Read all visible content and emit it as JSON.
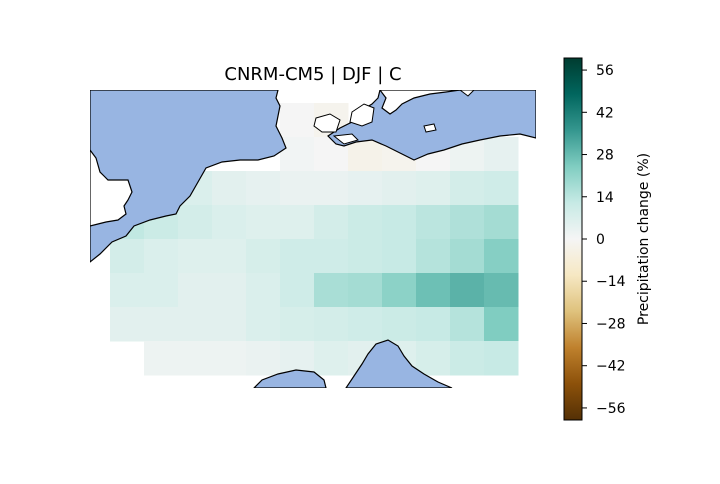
{
  "title": "CNRM-CM5 | DJF | C",
  "colorbar": {
    "label": "Precipitation change (%)",
    "ticks": [
      "56",
      "42",
      "28",
      "14",
      "0",
      "−14",
      "−28",
      "−42",
      "−56"
    ],
    "tick_values": [
      56,
      42,
      28,
      14,
      0,
      -14,
      -28,
      -42,
      -56
    ],
    "range": [
      -60,
      60
    ],
    "colormap": "BrBG",
    "colors": [
      "#543005",
      "#8c510a",
      "#bf812d",
      "#dfc27d",
      "#f6e8c3",
      "#f5f5f5",
      "#c7eae5",
      "#80cdc1",
      "#35978f",
      "#01665e",
      "#003c30"
    ]
  },
  "map_colors": {
    "sea": "#98b5e2",
    "land_background": "#ffffff",
    "coastline": "#000000"
  },
  "chart_data": {
    "type": "heatmap",
    "title": "CNRM-CM5 | DJF | C",
    "variable": "Precipitation change (%)",
    "value_range": [
      -60,
      60
    ],
    "grid_rows": [
      [
        null,
        null,
        null,
        null,
        null,
        null,
        0,
        -2,
        null,
        null,
        null,
        null,
        null
      ],
      [
        null,
        null,
        null,
        null,
        null,
        null,
        1,
        0,
        -3,
        -2,
        0,
        2,
        4
      ],
      [
        15,
        6,
        7,
        7,
        5,
        4,
        3,
        3,
        4,
        5,
        6,
        9,
        10
      ],
      [
        17,
        13,
        11,
        9,
        7,
        6,
        6,
        9,
        11,
        12,
        14,
        16,
        18
      ],
      [
        null,
        9,
        7,
        6,
        6,
        8,
        10,
        10,
        11,
        12,
        15,
        18,
        23
      ],
      [
        null,
        7,
        7,
        5,
        5,
        7,
        10,
        17,
        18,
        22,
        27,
        30,
        28
      ],
      [
        null,
        5,
        5,
        5,
        5,
        7,
        8,
        9,
        10,
        11,
        12,
        15,
        24
      ],
      [
        null,
        null,
        2,
        2,
        2,
        3,
        4,
        6,
        5,
        6,
        8,
        11,
        12
      ]
    ]
  }
}
